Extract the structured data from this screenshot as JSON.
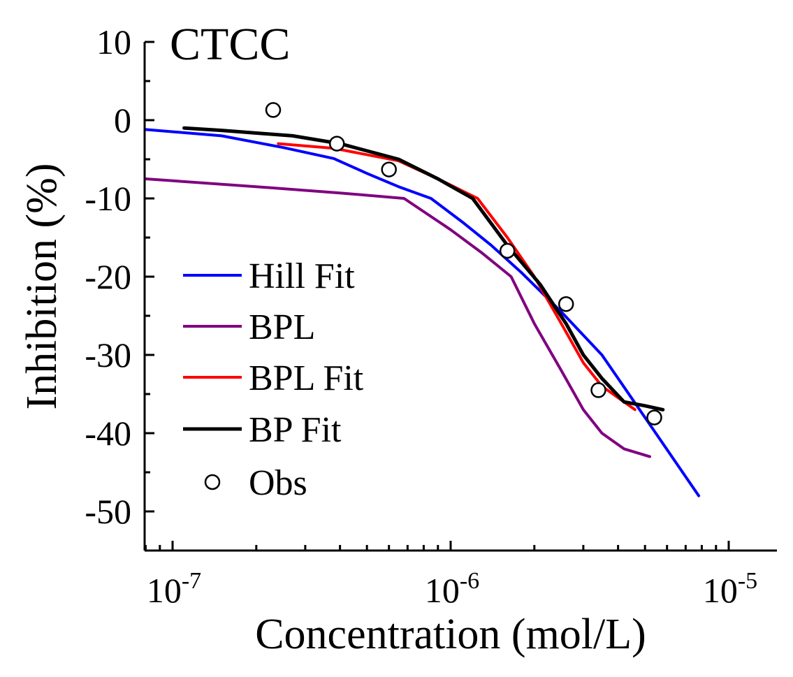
{
  "chart_data": {
    "type": "line",
    "title": "CTCC",
    "xlabel": "Concentration (mol/L)",
    "ylabel": "Inhibition (%)",
    "xscale": "log",
    "xlim": [
      8e-08,
      1.8e-05
    ],
    "ylim": [
      -55,
      10
    ],
    "xticks": [
      {
        "value": 1e-07,
        "base": "10",
        "exp": "-7"
      },
      {
        "value": 1e-06,
        "base": "10",
        "exp": "-6"
      },
      {
        "value": 1e-05,
        "base": "10",
        "exp": "-5"
      }
    ],
    "yticks": [
      {
        "value": 10,
        "label": "10"
      },
      {
        "value": 0,
        "label": "0"
      },
      {
        "value": -10,
        "label": "-10"
      },
      {
        "value": -20,
        "label": "-20"
      },
      {
        "value": -30,
        "label": "-30"
      },
      {
        "value": -40,
        "label": "-40"
      },
      {
        "value": -50,
        "label": "-50"
      }
    ],
    "legend_position": "left-center",
    "series": [
      {
        "name": "Hill Fit",
        "kind": "line",
        "color": "#0000ff",
        "x": [
          8e-08,
          1.5e-07,
          2.5e-07,
          3.8e-07,
          5e-07,
          6.5e-07,
          8.5e-07,
          1.1e-06,
          1.4e-06,
          1.8e-06,
          2.5e-06,
          3.5e-06,
          5e-06,
          7.8e-06
        ],
        "y": [
          -1.2,
          -2,
          -3.5,
          -4.9,
          -6.8,
          -8.5,
          -10,
          -13,
          -16,
          -19.5,
          -24.5,
          -30,
          -38,
          -48
        ]
      },
      {
        "name": "BPL",
        "kind": "line",
        "color": "#800080",
        "x": [
          8e-08,
          2e-07,
          4e-07,
          6.8e-07,
          1e-06,
          1.3e-06,
          1.65e-06,
          2e-06,
          2.5e-06,
          3e-06,
          3.5e-06,
          4.2e-06,
          5.2e-06
        ],
        "y": [
          -7.5,
          -8.5,
          -9.3,
          -10,
          -14,
          -17,
          -20,
          -26,
          -32,
          -37,
          -40,
          -42,
          -43
        ]
      },
      {
        "name": "BPL Fit",
        "kind": "line",
        "color": "#ff0000",
        "x": [
          2.4e-07,
          3.8e-07,
          6.5e-07,
          9e-07,
          1.25e-06,
          1.6e-06,
          2e-06,
          2.5e-06,
          3e-06,
          3.5e-06,
          4.6e-06
        ],
        "y": [
          -3,
          -3.6,
          -5.2,
          -7.5,
          -10,
          -15,
          -20,
          -26,
          -31,
          -34,
          -37
        ]
      },
      {
        "name": "BP Fit",
        "kind": "line",
        "color": "#000000",
        "x": [
          1.1e-07,
          1.5e-07,
          2.7e-07,
          4e-07,
          6.5e-07,
          9e-07,
          1.2e-06,
          1.6e-06,
          2.1e-06,
          2.6e-06,
          3e-06,
          3.5e-06,
          4.2e-06,
          5e-06,
          5.8e-06
        ],
        "y": [
          -1,
          -1.3,
          -2,
          -3,
          -5,
          -7.5,
          -10,
          -16,
          -21,
          -26,
          -30,
          -33,
          -36,
          -36.5,
          -37
        ]
      },
      {
        "name": "Obs",
        "kind": "scatter",
        "color": "#000000",
        "x": [
          2.3e-07,
          3.9e-07,
          6e-07,
          1.6e-06,
          2.6e-06,
          3.4e-06,
          5.4e-06
        ],
        "y": [
          1.3,
          -3,
          -6.3,
          -16.7,
          -23.5,
          -34.5,
          -38
        ]
      }
    ]
  }
}
